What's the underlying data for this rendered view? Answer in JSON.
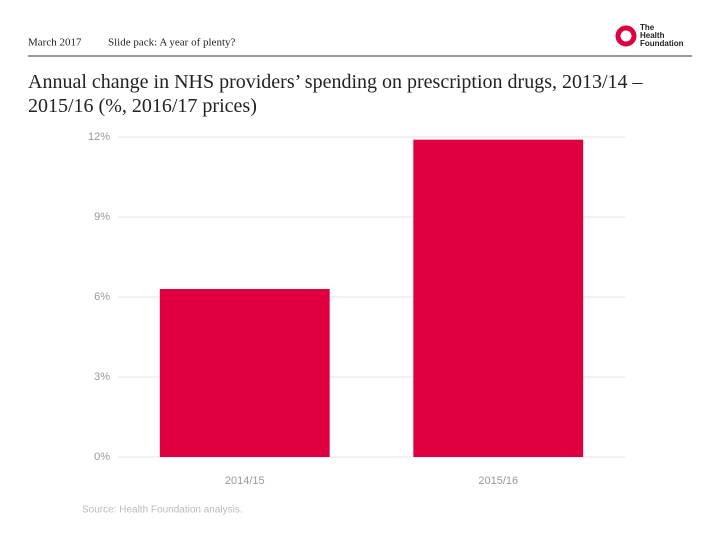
{
  "header": {
    "date": "March 2017",
    "deck": "Slide pack: A year of plenty?",
    "logo": [
      "The",
      "Health",
      "Foundation"
    ]
  },
  "chart_data": {
    "type": "bar",
    "title": "Annual change in NHS providers’ spending on prescription drugs, 2013/14 –2015/16 (%, 2016/17 prices)",
    "categories": [
      "2014/15",
      "2015/16"
    ],
    "values": [
      6.3,
      11.9
    ],
    "color": "#e0003f",
    "ylim": [
      0,
      12
    ],
    "yticks": [
      {
        "value": 0,
        "label": "0%"
      },
      {
        "value": 3,
        "label": "3%"
      },
      {
        "value": 6,
        "label": "6%"
      },
      {
        "value": 9,
        "label": "9%"
      },
      {
        "value": 12,
        "label": "12%"
      }
    ],
    "grid": true,
    "source": "Source: Health Foundation analysis."
  }
}
